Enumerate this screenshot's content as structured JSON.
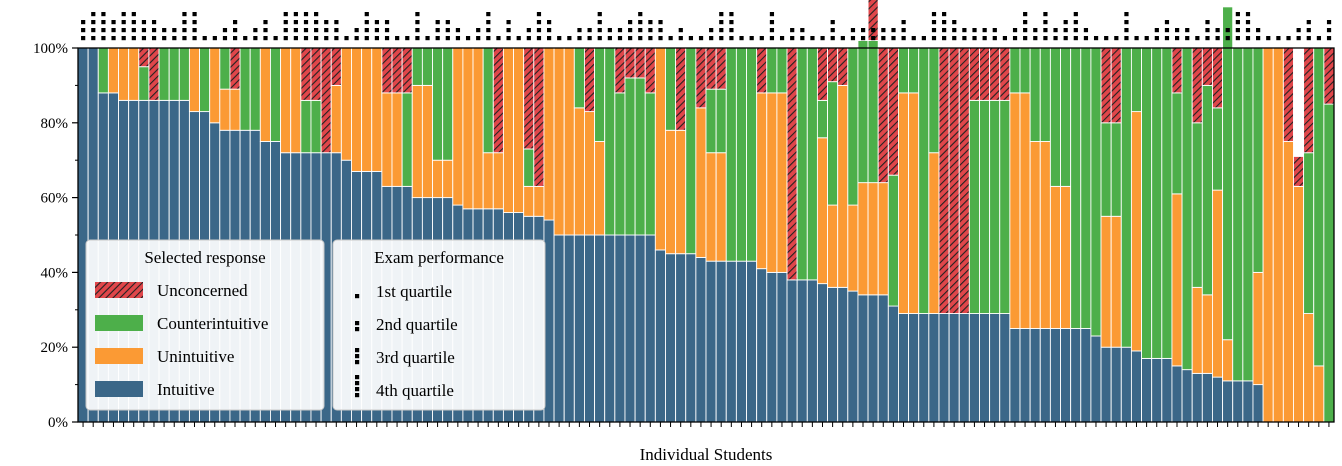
{
  "chart_data": {
    "type": "bar",
    "stacked": true,
    "normalized": true,
    "xlabel": "Individual Students",
    "ylabel": "",
    "ylim": [
      0,
      100
    ],
    "yticks": [
      "0%",
      "20%",
      "40%",
      "60%",
      "80%",
      "100%"
    ],
    "grid": false,
    "legend_placement": "lower-left",
    "colors": {
      "Unconcerned": "#e0464a",
      "Counterintuitive": "#4daf4a",
      "Unintuitive": "#fb9a34",
      "Intuitive": "#3b6788"
    },
    "series": [
      {
        "name": "Intuitive",
        "values": [
          100,
          100,
          88,
          88,
          86,
          86,
          86,
          86,
          86,
          86,
          86,
          83,
          83,
          80,
          78,
          78,
          78,
          78,
          75,
          75,
          72,
          72,
          72,
          72,
          72,
          72,
          70,
          67,
          67,
          67,
          63,
          63,
          63,
          60,
          60,
          60,
          60,
          58,
          57,
          57,
          57,
          57,
          56,
          56,
          55,
          55,
          54,
          50,
          50,
          50,
          50,
          50,
          50,
          50,
          50,
          50,
          50,
          46,
          45,
          45,
          45,
          44,
          43,
          43,
          43,
          43,
          43,
          41,
          40,
          40,
          38,
          38,
          38,
          37,
          36,
          36,
          35,
          34,
          34,
          34,
          31,
          29,
          29,
          29,
          29,
          29,
          29,
          29,
          29,
          29,
          29,
          29,
          25,
          25,
          25,
          25,
          25,
          25,
          25,
          25,
          23,
          20,
          20,
          20,
          19,
          17,
          17,
          17,
          15,
          14,
          13,
          13,
          12,
          11,
          11,
          11,
          10,
          0,
          0,
          0,
          0,
          0,
          0,
          0
        ]
      },
      {
        "name": "Unintuitive",
        "values": [
          0,
          0,
          0,
          12,
          14,
          14,
          0,
          0,
          0,
          0,
          0,
          17,
          0,
          20,
          11,
          11,
          0,
          0,
          25,
          0,
          28,
          28,
          0,
          0,
          0,
          18,
          30,
          33,
          33,
          33,
          25,
          25,
          0,
          30,
          30,
          10,
          10,
          42,
          43,
          43,
          15,
          15,
          44,
          44,
          8,
          8,
          46,
          50,
          50,
          34,
          33,
          25,
          0,
          0,
          0,
          0,
          0,
          54,
          33,
          33,
          0,
          40,
          29,
          29,
          0,
          0,
          0,
          47,
          48,
          48,
          0,
          0,
          0,
          39,
          22,
          54,
          23,
          30,
          30,
          30,
          0,
          59,
          59,
          0,
          43,
          0,
          0,
          0,
          0,
          0,
          0,
          0,
          63,
          63,
          50,
          50,
          38,
          38,
          0,
          0,
          0,
          35,
          35,
          0,
          64,
          0,
          0,
          0,
          46,
          0,
          23,
          21,
          50,
          11,
          0,
          0,
          30,
          100,
          100,
          75,
          63,
          29,
          15,
          0
        ]
      },
      {
        "name": "Counterintuitive",
        "values": [
          0,
          0,
          12,
          0,
          0,
          0,
          9,
          0,
          14,
          14,
          14,
          0,
          17,
          0,
          11,
          0,
          22,
          22,
          0,
          25,
          0,
          0,
          14,
          14,
          0,
          0,
          0,
          0,
          0,
          0,
          0,
          0,
          25,
          10,
          10,
          30,
          30,
          0,
          0,
          0,
          28,
          0,
          0,
          0,
          10,
          0,
          0,
          0,
          0,
          16,
          0,
          25,
          50,
          38,
          42,
          42,
          38,
          0,
          22,
          0,
          55,
          0,
          17,
          17,
          57,
          57,
          57,
          0,
          12,
          12,
          0,
          62,
          62,
          10,
          33,
          0,
          42,
          38,
          38,
          0,
          35,
          12,
          12,
          71,
          28,
          0,
          0,
          0,
          57,
          57,
          57,
          57,
          12,
          12,
          25,
          25,
          37,
          37,
          75,
          75,
          77,
          25,
          25,
          80,
          17,
          83,
          83,
          83,
          27,
          86,
          44,
          56,
          22,
          89,
          89,
          89,
          60,
          0,
          0,
          0,
          0,
          43,
          85,
          85
        ]
      },
      {
        "name": "Unconcerned",
        "values": [
          0,
          0,
          0,
          0,
          0,
          0,
          5,
          14,
          0,
          0,
          0,
          0,
          0,
          0,
          0,
          11,
          0,
          0,
          0,
          0,
          0,
          0,
          14,
          14,
          28,
          10,
          0,
          0,
          0,
          0,
          12,
          12,
          12,
          0,
          0,
          0,
          0,
          0,
          0,
          0,
          0,
          28,
          0,
          0,
          27,
          37,
          0,
          0,
          0,
          0,
          17,
          0,
          0,
          12,
          8,
          8,
          12,
          0,
          0,
          22,
          0,
          16,
          11,
          11,
          0,
          0,
          0,
          12,
          0,
          0,
          62,
          0,
          0,
          14,
          9,
          10,
          0,
          0,
          28,
          36,
          34,
          0,
          0,
          0,
          0,
          71,
          71,
          71,
          14,
          14,
          14,
          14,
          0,
          0,
          0,
          0,
          0,
          0,
          0,
          0,
          0,
          20,
          20,
          0,
          0,
          0,
          0,
          0,
          12,
          0,
          20,
          10,
          16,
          0,
          0,
          0,
          0,
          0,
          0,
          25,
          8,
          28,
          0,
          15
        ]
      }
    ],
    "quartiles": [
      3,
      4,
      4,
      3,
      4,
      4,
      3,
      3,
      2,
      2,
      4,
      4,
      1,
      1,
      2,
      3,
      1,
      2,
      3,
      1,
      4,
      4,
      4,
      4,
      3,
      3,
      1,
      2,
      4,
      3,
      3,
      1,
      1,
      4,
      1,
      3,
      3,
      2,
      1,
      2,
      4,
      1,
      3,
      1,
      2,
      4,
      3,
      1,
      1,
      2,
      2,
      4,
      2,
      2,
      3,
      4,
      3,
      3,
      1,
      2,
      1,
      1,
      2,
      4,
      4,
      1,
      1,
      1,
      4,
      1,
      2,
      2,
      1,
      1,
      3,
      1,
      2,
      2,
      2,
      2,
      2,
      3,
      1,
      1,
      4,
      4,
      3,
      2,
      2,
      2,
      2,
      1,
      2,
      4,
      2,
      4,
      2,
      3,
      4,
      2,
      1,
      1,
      1,
      4,
      1,
      1,
      2,
      3,
      2,
      2,
      1,
      3,
      2,
      2,
      4,
      4,
      2,
      1,
      1,
      1,
      2,
      3,
      1,
      3
    ],
    "legends": [
      {
        "title": "Selected response",
        "entries": [
          "Unconcerned",
          "Counterintuitive",
          "Unintuitive",
          "Intuitive"
        ]
      },
      {
        "title": "Exam performance",
        "entries": [
          "1st quartile",
          "2nd quartile",
          "3rd quartile",
          "4th quartile"
        ]
      }
    ]
  }
}
